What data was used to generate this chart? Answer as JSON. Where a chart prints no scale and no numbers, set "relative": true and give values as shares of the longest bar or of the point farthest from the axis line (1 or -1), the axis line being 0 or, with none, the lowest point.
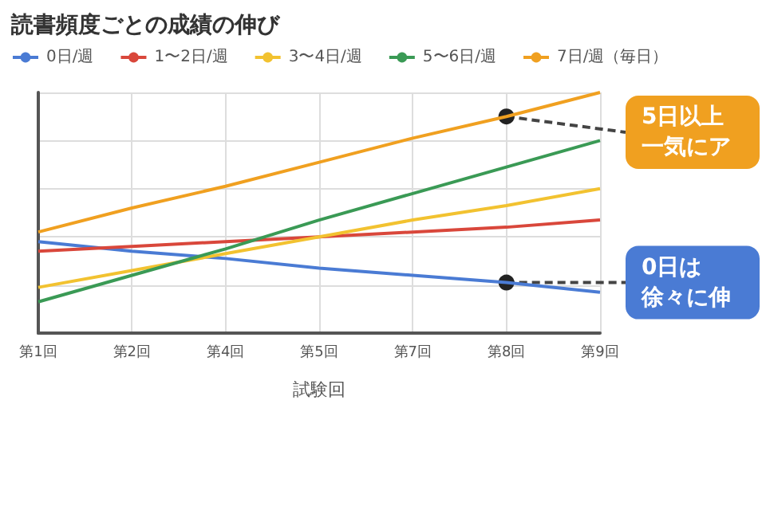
{
  "chart_data": {
    "type": "line",
    "title": "読書頻度ごとの成績の伸び",
    "xlabel": "試験回",
    "categories": [
      "第1回",
      "第2回",
      "第4回",
      "第5回",
      "第7回",
      "第8回",
      "第9回"
    ],
    "relative": true,
    "grid": true,
    "legend": "top left",
    "marker": "none",
    "series": [
      {
        "name": "0日/週",
        "color": "#4a7bd4",
        "values": [
          0.38,
          0.34,
          0.31,
          0.27,
          0.24,
          0.21,
          0.17
        ]
      },
      {
        "name": "1〜2日/週",
        "color": "#d9473b",
        "values": [
          0.34,
          0.36,
          0.38,
          0.4,
          0.42,
          0.44,
          0.47
        ]
      },
      {
        "name": "3〜4日/週",
        "color": "#f2c230",
        "values": [
          0.19,
          0.26,
          0.33,
          0.4,
          0.47,
          0.53,
          0.6
        ]
      },
      {
        "name": "5〜6日/週",
        "color": "#3a9a55",
        "values": [
          0.13,
          0.24,
          0.35,
          0.47,
          0.58,
          0.69,
          0.8
        ]
      },
      {
        "name": "7日/週（毎日）",
        "color": "#f0a020",
        "values": [
          0.42,
          0.52,
          0.61,
          0.71,
          0.81,
          0.9,
          1
        ]
      }
    ],
    "annotations": [
      {
        "text": "5日以上",
        "x": "第8回",
        "y": 0.9
      },
      "一気にア",
      {
        "text": "0日は",
        "x": "第8回",
        "y": 0.21
      },
      "徐々に伸"
    ]
  }
}
